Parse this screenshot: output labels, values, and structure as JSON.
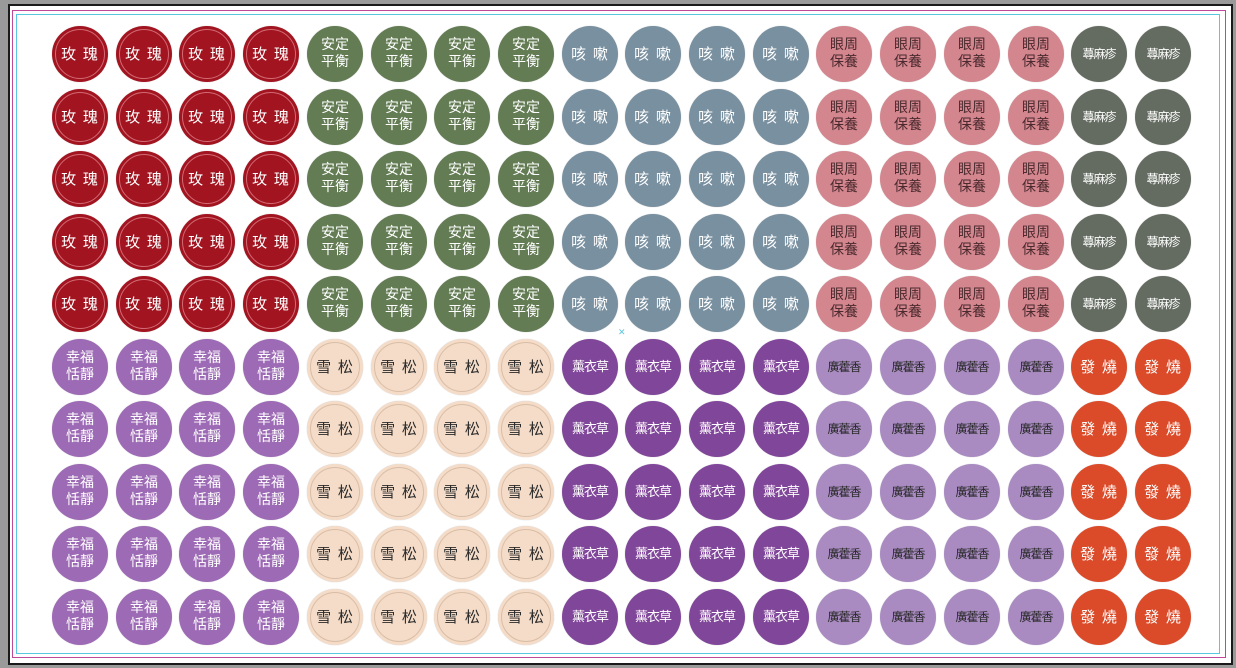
{
  "groups": [
    {
      "id": "rose",
      "lines": [
        "玫 瑰"
      ],
      "bg": "#a11420",
      "fg": "#ffffff",
      "ring": "#d36a73",
      "size": "15px",
      "spacing": "1px"
    },
    {
      "id": "calm",
      "lines": [
        "安定",
        "平衡"
      ],
      "bg": "#637c54",
      "fg": "#ffffff",
      "ring": "none",
      "size": "14px",
      "spacing": "0px"
    },
    {
      "id": "cough",
      "lines": [
        "咳 嗽"
      ],
      "bg": "#7990a0",
      "fg": "#ffffff",
      "ring": "none",
      "size": "15px",
      "spacing": "1px"
    },
    {
      "id": "eye",
      "lines": [
        "眼周",
        "保養"
      ],
      "bg": "#d4868f",
      "fg": "#4a2a2e",
      "ring": "none",
      "size": "14px",
      "spacing": "0px"
    },
    {
      "id": "hives",
      "lines": [
        "蕁麻疹"
      ],
      "bg": "#646c61",
      "fg": "#ffffff",
      "ring": "none",
      "size": "12px",
      "spacing": "-1px"
    },
    {
      "id": "happy",
      "lines": [
        "幸福",
        "恬靜"
      ],
      "bg": "#9d6ab5",
      "fg": "#ffffff",
      "ring": "none",
      "size": "14px",
      "spacing": "0px"
    },
    {
      "id": "cedar",
      "lines": [
        "雪 松"
      ],
      "bg": "#f4dcc8",
      "fg": "#2a2a2a",
      "ring": "#d9bda6",
      "size": "15px",
      "spacing": "1px"
    },
    {
      "id": "lavender",
      "lines": [
        "薰衣草"
      ],
      "bg": "#80469a",
      "fg": "#ffffff",
      "ring": "none",
      "size": "13px",
      "spacing": "-1px"
    },
    {
      "id": "patchouli",
      "lines": [
        "廣藿香"
      ],
      "bg": "#a98bc2",
      "fg": "#2a2a2a",
      "ring": "none",
      "size": "12px",
      "spacing": "-1px"
    },
    {
      "id": "fever",
      "lines": [
        "發 燒"
      ],
      "bg": "#db4b2a",
      "fg": "#ffffff",
      "ring": "none",
      "size": "15px",
      "spacing": "1px"
    }
  ],
  "layout_top": [
    "rose",
    "rose",
    "rose",
    "rose",
    "calm",
    "calm",
    "calm",
    "calm",
    "cough",
    "cough",
    "cough",
    "cough",
    "eye",
    "eye",
    "eye",
    "eye",
    "hives",
    "hives"
  ],
  "layout_bottom": [
    "happy",
    "happy",
    "happy",
    "happy",
    "cedar",
    "cedar",
    "cedar",
    "cedar",
    "lavender",
    "lavender",
    "lavender",
    "lavender",
    "patchouli",
    "patchouli",
    "patchouli",
    "patchouli",
    "fever",
    "fever"
  ],
  "rows_per_block": 5,
  "center_mark": "✕"
}
